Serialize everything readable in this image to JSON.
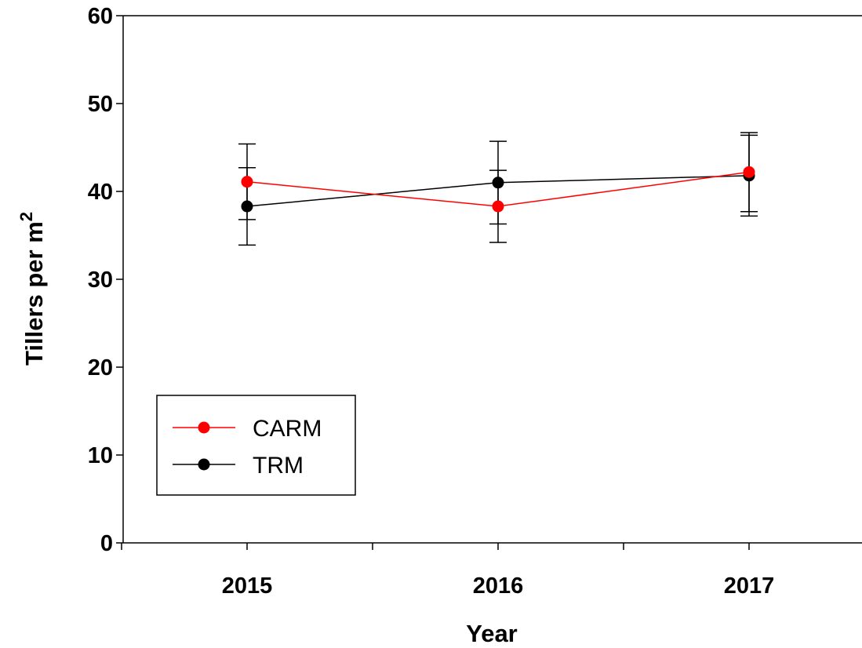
{
  "chart_data": {
    "type": "line",
    "title": "",
    "xlabel": "Year",
    "ylabel": {
      "main": "Tillers per m",
      "superscript": "2"
    },
    "categories": [
      "2015",
      "2016",
      "2017"
    ],
    "ylim": [
      0,
      60
    ],
    "yticks": [
      0,
      10,
      20,
      30,
      40,
      50,
      60
    ],
    "grid": false,
    "legend_position": "bottom-left",
    "series": [
      {
        "name": "CARM",
        "color": "#ff0000",
        "values": [
          41.1,
          38.3,
          42.2
        ],
        "error": [
          4.3,
          4.1,
          4.5
        ]
      },
      {
        "name": "TRM",
        "color": "#000000",
        "values": [
          38.3,
          41.0,
          41.8
        ],
        "error": [
          4.4,
          4.7,
          4.6
        ]
      }
    ]
  }
}
